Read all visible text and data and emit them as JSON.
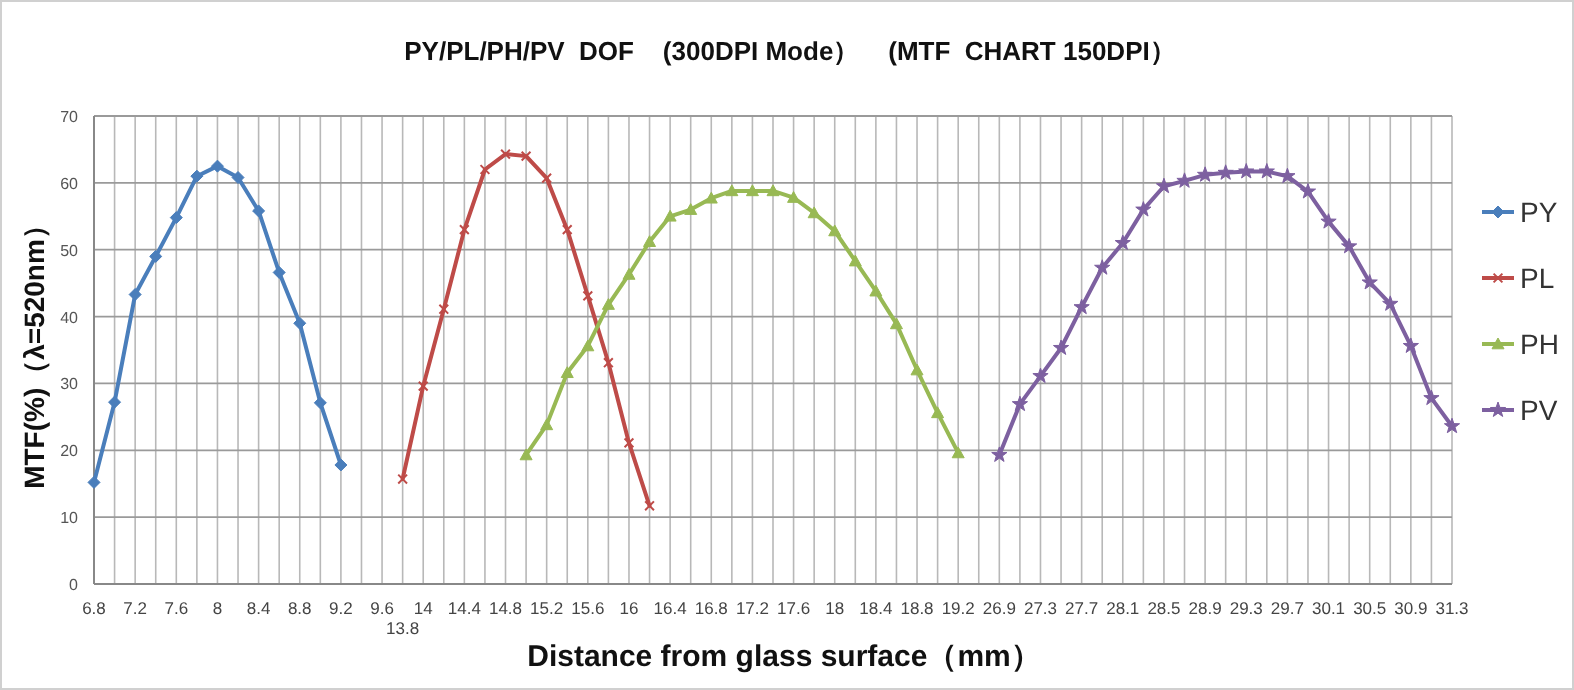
{
  "chart_data": {
    "type": "line",
    "title": "PY/PL/PH/PV  DOF    (300DPI Mode）    (MTF  CHART 150DPI）",
    "xlabel": "Distance from glass surface（mm）",
    "ylabel": "MTF(%)（λ=520nm）",
    "categories": [
      "6.8",
      null,
      "7.2",
      null,
      "7.6",
      null,
      "8",
      null,
      "8.4",
      null,
      "8.8",
      null,
      "9.2",
      null,
      "9.6",
      "13.8",
      "14",
      null,
      "14.4",
      null,
      "14.8",
      null,
      "15.2",
      null,
      "15.6",
      null,
      "16",
      null,
      "16.4",
      null,
      "16.8",
      null,
      "17.2",
      null,
      "17.6",
      null,
      "18",
      null,
      "18.4",
      null,
      "18.8",
      null,
      "19.2",
      null,
      "26.9",
      null,
      "27.3",
      null,
      "27.7",
      null,
      "28.1",
      null,
      "28.5",
      null,
      "28.9",
      null,
      "29.3",
      null,
      "29.7",
      null,
      "30.1",
      null,
      "30.5",
      null,
      "30.9",
      null,
      "31.3"
    ],
    "series": [
      {
        "name": "PY",
        "color": "#4a7ebb",
        "marker": "diamond",
        "values": [
          15.2,
          27.2,
          43.3,
          49.0,
          54.8,
          61.0,
          62.5,
          60.8,
          55.8,
          46.6,
          39.0,
          27.1,
          17.8,
          null,
          null,
          null,
          null,
          null,
          null,
          null,
          null,
          null,
          null,
          null,
          null,
          null,
          null,
          null,
          null,
          null,
          null,
          null,
          null,
          null,
          null,
          null,
          null,
          null,
          null,
          null,
          null,
          null,
          null,
          null,
          null,
          null,
          null,
          null,
          null,
          null,
          null,
          null,
          null,
          null,
          null,
          null,
          null,
          null,
          null,
          null,
          null,
          null,
          null,
          null,
          null,
          null,
          null
        ]
      },
      {
        "name": "PL",
        "color": "#be4b48",
        "marker": "cross",
        "values": [
          null,
          null,
          null,
          null,
          null,
          null,
          null,
          null,
          null,
          null,
          null,
          null,
          null,
          null,
          null,
          15.7,
          29.6,
          41.1,
          53.0,
          62.0,
          64.3,
          64.0,
          60.7,
          53.0,
          43.1,
          33.1,
          21.1,
          11.7,
          null,
          null,
          null,
          null,
          null,
          null,
          null,
          null,
          null,
          null,
          null,
          null,
          null,
          null,
          null,
          null,
          null,
          null,
          null,
          null,
          null,
          null,
          null,
          null,
          null,
          null,
          null,
          null,
          null,
          null,
          null,
          null,
          null,
          null,
          null,
          null,
          null,
          null,
          null
        ]
      },
      {
        "name": "PH",
        "color": "#98b954",
        "marker": "triangle",
        "values": [
          null,
          null,
          null,
          null,
          null,
          null,
          null,
          null,
          null,
          null,
          null,
          null,
          null,
          null,
          null,
          null,
          null,
          null,
          null,
          null,
          null,
          19.3,
          23.8,
          31.6,
          35.6,
          41.8,
          46.3,
          51.2,
          55.0,
          56.0,
          57.7,
          58.8,
          58.8,
          58.8,
          57.8,
          55.5,
          52.8,
          48.3,
          43.8,
          38.9,
          32.0,
          25.6,
          19.6,
          null,
          null,
          null,
          null,
          null,
          null,
          null,
          null,
          null,
          null,
          null,
          null,
          null,
          null,
          null,
          null,
          null,
          null,
          null,
          null,
          null,
          null,
          null,
          null
        ]
      },
      {
        "name": "PV",
        "color": "#7d60a0",
        "marker": "star",
        "values": [
          null,
          null,
          null,
          null,
          null,
          null,
          null,
          null,
          null,
          null,
          null,
          null,
          null,
          null,
          null,
          null,
          null,
          null,
          null,
          null,
          null,
          null,
          null,
          null,
          null,
          null,
          null,
          null,
          null,
          null,
          null,
          null,
          null,
          null,
          null,
          null,
          null,
          null,
          null,
          null,
          null,
          null,
          null,
          null,
          19.3,
          26.9,
          31.1,
          35.3,
          41.4,
          47.3,
          51.0,
          56.0,
          59.5,
          60.3,
          61.2,
          61.5,
          61.7,
          61.7,
          61.0,
          58.7,
          54.2,
          50.5,
          45.1,
          41.9,
          35.6,
          27.8,
          23.6
        ]
      }
    ],
    "ylim": [
      0,
      70
    ],
    "yticks": [
      0,
      10,
      20,
      30,
      40,
      50,
      60,
      70
    ],
    "grid": true,
    "legend": "right"
  }
}
